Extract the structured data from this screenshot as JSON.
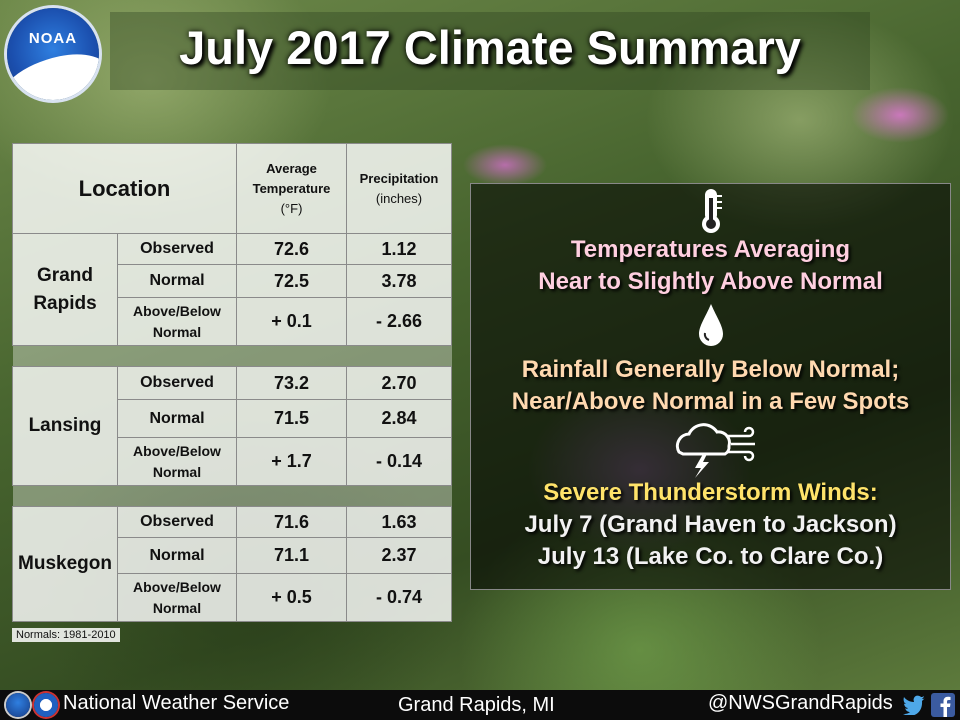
{
  "title": "July 2017 Climate Summary",
  "logo_text": "NOAA",
  "table": {
    "header_location": "Location",
    "header_temp_line1": "Average",
    "header_temp_line2": "Temperature",
    "header_temp_unit": "(°F)",
    "header_precip": "Precipitation",
    "header_precip_unit": "(inches)",
    "grand_rapids": {
      "name_line1": "Grand",
      "name_line2": "Rapids",
      "observed_label": "Observed",
      "observed_temp": "72.6",
      "observed_precip": "1.12",
      "normal_label": "Normal",
      "normal_temp": "72.5",
      "normal_precip": "3.78",
      "diff_label_line1": "Above/Below",
      "diff_label_line2": "Normal",
      "diff_temp": "+ 0.1",
      "diff_precip": "- 2.66"
    },
    "lansing": {
      "name": "Lansing",
      "observed_label": "Observed",
      "observed_temp": "73.2",
      "observed_precip": "2.70",
      "normal_label": "Normal",
      "normal_temp": "71.5",
      "normal_precip": "2.84",
      "diff_label_line1": "Above/Below",
      "diff_label_line2": "Normal",
      "diff_temp": "+ 1.7",
      "diff_precip": "- 0.14"
    },
    "muskegon": {
      "name": "Muskegon",
      "observed_label": "Observed",
      "observed_temp": "71.6",
      "observed_precip": "1.63",
      "normal_label": "Normal",
      "normal_temp": "71.1",
      "normal_precip": "2.37",
      "diff_label_line1": "Above/Below",
      "diff_label_line2": "Normal",
      "diff_temp": "+ 0.5",
      "diff_precip": "- 0.74"
    },
    "normals_note": "Normals: 1981-2010"
  },
  "panel": {
    "icons": [
      "thermometer-icon",
      "raindrop-icon",
      "storm-wind-icon"
    ],
    "temp_line1": "Temperatures Averaging",
    "temp_line2": "Near to Slightly Above Normal",
    "rain_line1": "Rainfall Generally Below Normal;",
    "rain_line2": "Near/Above Normal in a Few Spots",
    "storm_line1": "Severe Thunderstorm Winds:",
    "storm_line2": "July 7 (Grand Haven to Jackson)",
    "storm_line3": "July 13 (Lake Co. to Clare Co.)"
  },
  "footer": {
    "agency": "National Weather Service",
    "location": "Grand Rapids, MI",
    "handle": "@NWSGrandRapids",
    "icons": [
      "noaa-logo-icon",
      "nws-logo-icon",
      "twitter-icon",
      "facebook-icon"
    ]
  },
  "colors": {
    "title": "#ffffff",
    "panel_pink": "#ffcfe0",
    "panel_peach": "#ffd9b0",
    "panel_yellow": "#ffe36a",
    "temp_positive_red": "#d42020",
    "precip_negative_brown": "#b04a1a"
  }
}
